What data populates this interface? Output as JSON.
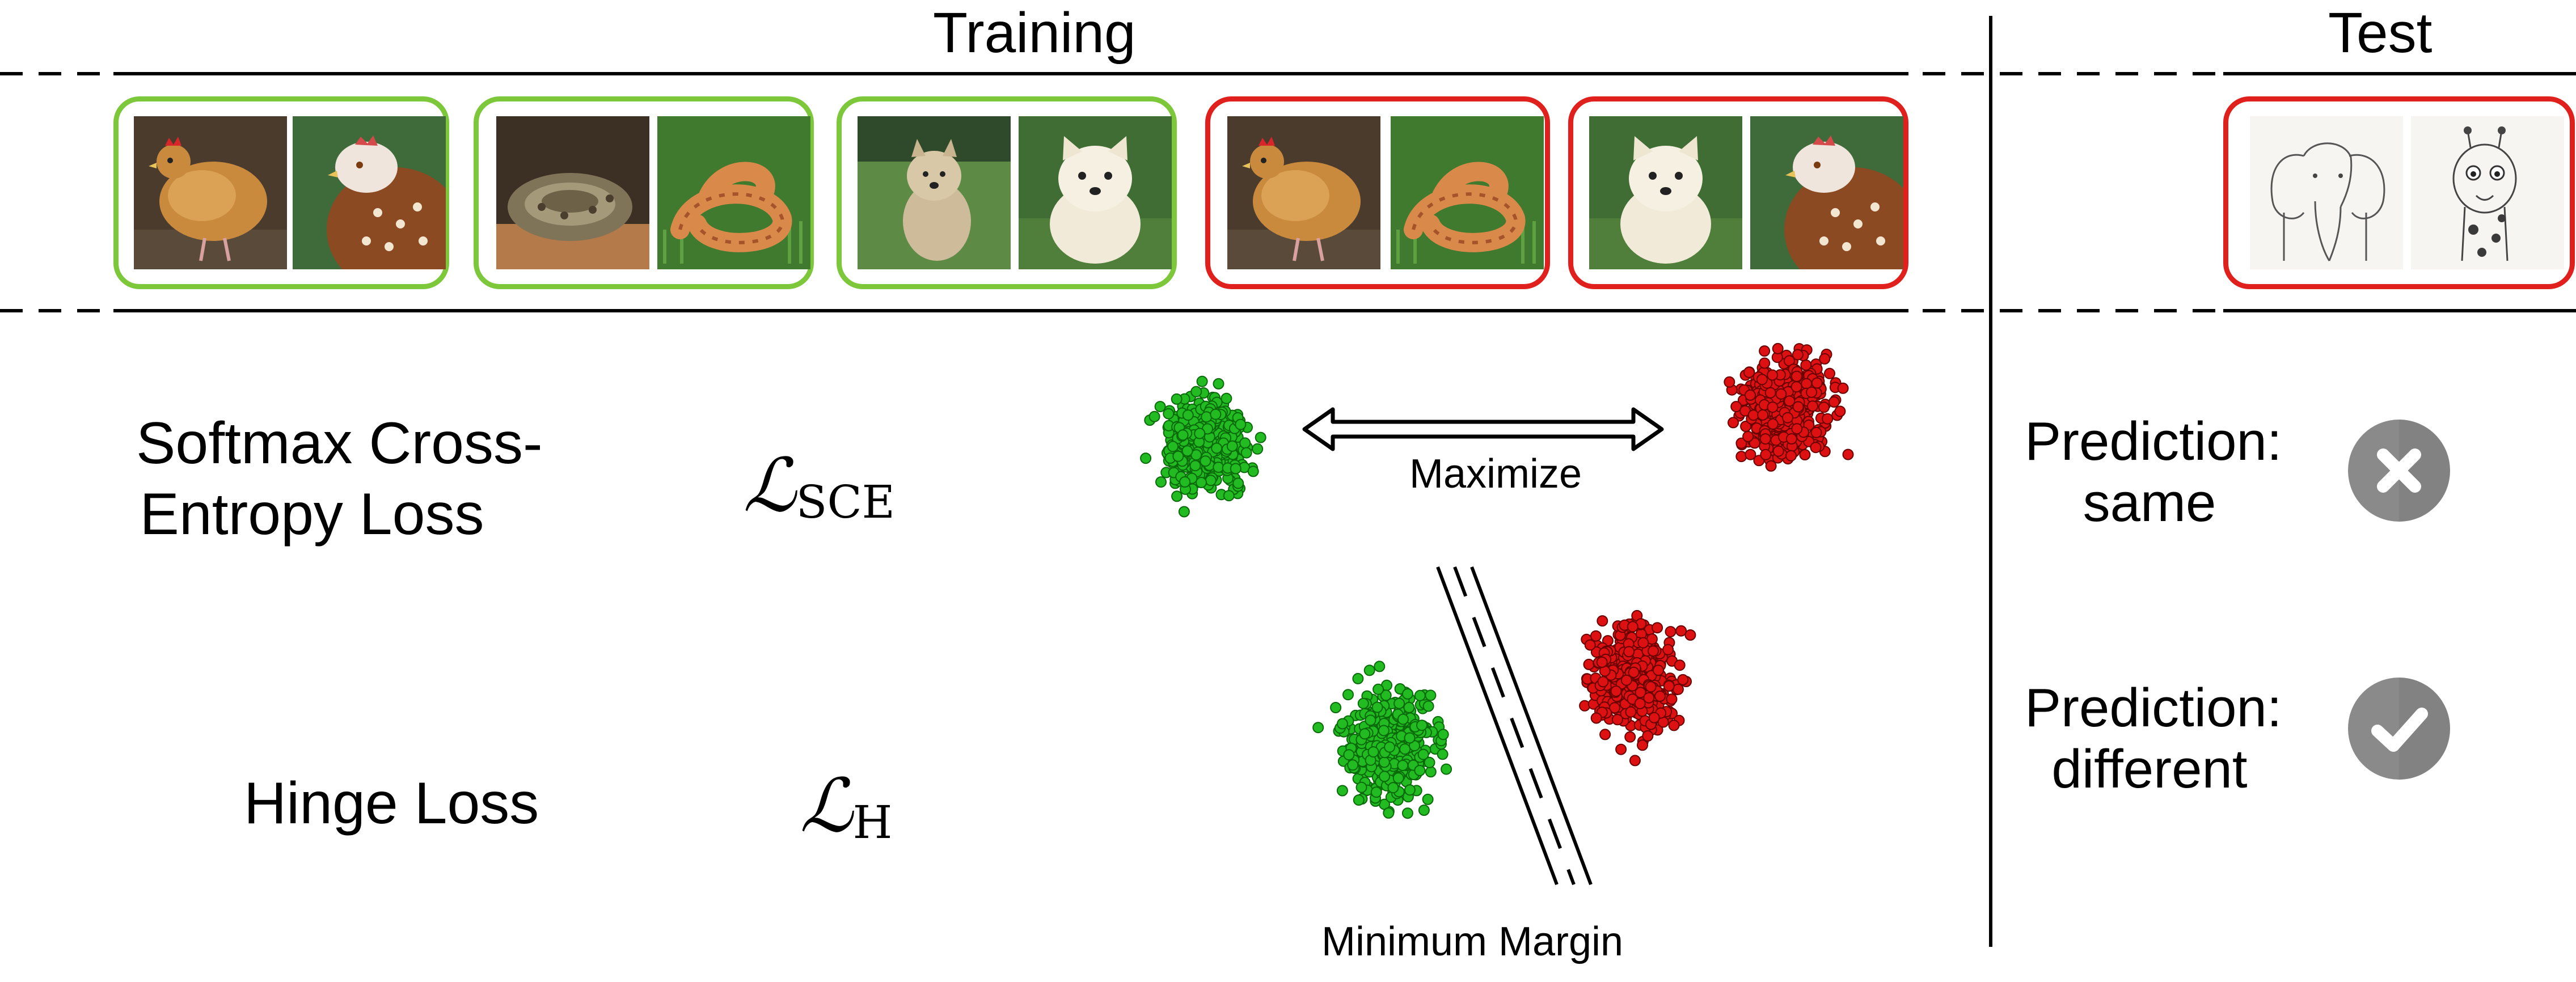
{
  "headers": {
    "training": "Training",
    "test": "Test"
  },
  "pairs": [
    {
      "type": "positive",
      "images": [
        "hen",
        "hen"
      ]
    },
    {
      "type": "positive",
      "images": [
        "snake",
        "snake"
      ]
    },
    {
      "type": "positive",
      "images": [
        "dog",
        "dog"
      ]
    },
    {
      "type": "negative",
      "images": [
        "hen",
        "snake"
      ]
    },
    {
      "type": "negative",
      "images": [
        "dog",
        "hen"
      ]
    }
  ],
  "test_pair": {
    "type": "negative",
    "images": [
      "elephant-sketch",
      "giraffe-sketch"
    ]
  },
  "losses": {
    "sce": {
      "name_line1": "Softmax Cross-",
      "name_line2": "Entropy Loss",
      "symbol": "ℒ",
      "subscript": "SCE"
    },
    "hinge": {
      "name": "Hinge Loss",
      "symbol": "ℒ",
      "subscript": "H"
    }
  },
  "annotations": {
    "maximize": "Maximize",
    "minimum_margin": "Minimum Margin"
  },
  "predictions": {
    "sce": {
      "line1": "Prediction:",
      "line2": "same",
      "result_icon": "cross-icon"
    },
    "hinge": {
      "line1": "Prediction:",
      "line2": "different",
      "result_icon": "check-icon"
    }
  },
  "colors": {
    "positive_border": "#7dc83a",
    "negative_border": "#e0201d",
    "green_points": "#22bb22",
    "red_points": "#dd1111",
    "icon_gray": "#8a8a8a"
  }
}
